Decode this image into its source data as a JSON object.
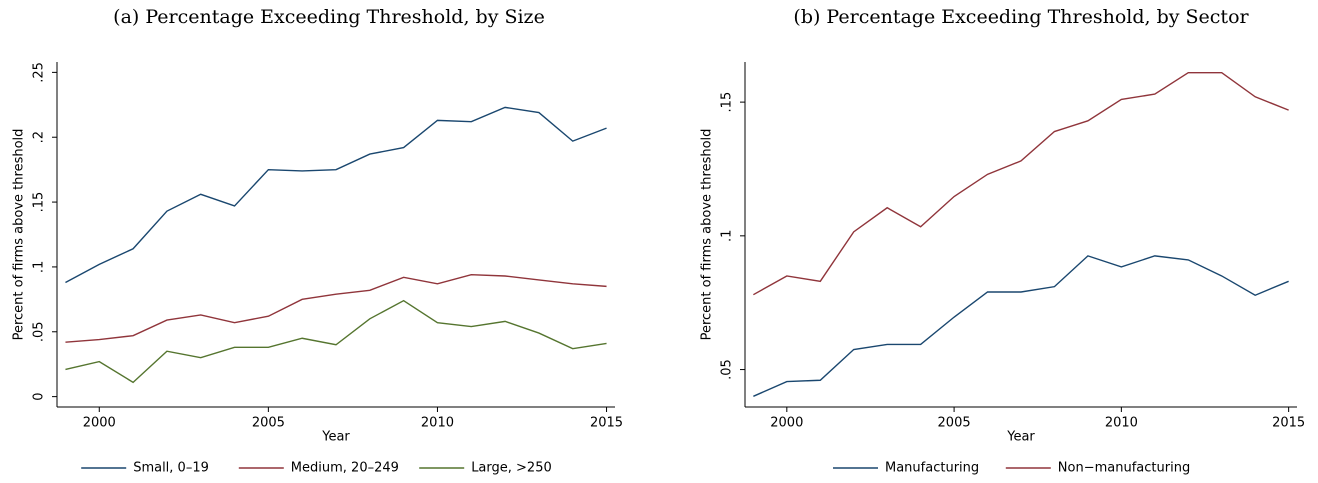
{
  "chart_data": [
    {
      "type": "line",
      "title": "(a) Percentage Exceeding Threshold, by Size",
      "x_label": "Year",
      "y_label": "Percent of firms above threshold",
      "x": [
        1999,
        2000,
        2001,
        2002,
        2003,
        2004,
        2005,
        2006,
        2007,
        2008,
        2009,
        2010,
        2011,
        2012,
        2013,
        2014,
        2015
      ],
      "series": [
        {
          "name": "Small, 0–19",
          "color": "#1a476f",
          "values": [
            0.088,
            0.102,
            0.114,
            0.143,
            0.156,
            0.147,
            0.175,
            0.174,
            0.175,
            0.187,
            0.192,
            0.213,
            0.212,
            0.223,
            0.219,
            0.197,
            0.207
          ]
        },
        {
          "name": "Medium, 20–249",
          "color": "#90353b",
          "values": [
            0.042,
            0.044,
            0.047,
            0.059,
            0.063,
            0.057,
            0.062,
            0.075,
            0.079,
            0.082,
            0.092,
            0.087,
            0.094,
            0.093,
            0.09,
            0.087,
            0.085
          ]
        },
        {
          "name": "Large, >250",
          "color": "#55752f",
          "values": [
            0.021,
            0.027,
            0.011,
            0.035,
            0.03,
            0.038,
            0.038,
            0.045,
            0.04,
            0.06,
            0.074,
            0.057,
            0.054,
            0.058,
            0.049,
            0.037,
            0.041
          ]
        }
      ],
      "xlim": [
        1998.75,
        2015.25
      ],
      "xticks": [
        2000,
        2005,
        2010,
        2015
      ],
      "ylim": [
        -0.008,
        0.258
      ],
      "yticks": [
        0,
        {
          "value": 0.05,
          "label": ".05"
        },
        {
          "value": 0.1,
          "label": ".1"
        },
        {
          "value": 0.15,
          "label": ".15"
        },
        {
          "value": 0.2,
          "label": ".2"
        },
        {
          "value": 0.25,
          "label": ".25"
        }
      ],
      "legend": "bottom"
    },
    {
      "type": "line",
      "title": "(b) Percentage Exceeding Threshold, by Sector",
      "x_label": "Year",
      "y_label": "Percent of firms above threshold",
      "x": [
        1999,
        2000,
        2001,
        2002,
        2003,
        2004,
        2005,
        2006,
        2007,
        2008,
        2009,
        2010,
        2011,
        2012,
        2013,
        2014,
        2015
      ],
      "series": [
        {
          "name": "Manufacturing",
          "color": "#1a476f",
          "values": [
            0.04,
            0.0455,
            0.046,
            0.0575,
            0.0594,
            0.0594,
            0.0696,
            0.079,
            0.079,
            0.081,
            0.0925,
            0.0884,
            0.0925,
            0.091,
            0.085,
            0.0778,
            0.083
          ]
        },
        {
          "name": "Non−manufacturing",
          "color": "#90353b",
          "values": [
            0.078,
            0.085,
            0.083,
            0.1015,
            0.1105,
            0.1034,
            0.1147,
            0.123,
            0.128,
            0.139,
            0.143,
            0.151,
            0.153,
            0.161,
            0.161,
            0.152,
            0.147
          ]
        }
      ],
      "xlim": [
        1998.75,
        2015.25
      ],
      "xticks": [
        2000,
        2005,
        2010,
        2015
      ],
      "ylim": [
        0.036,
        0.165
      ],
      "yticks": [
        {
          "value": 0.05,
          "label": ".05"
        },
        {
          "value": 0.1,
          "label": ".1"
        },
        {
          "value": 0.15,
          "label": ".15"
        }
      ],
      "legend": "bottom"
    }
  ]
}
